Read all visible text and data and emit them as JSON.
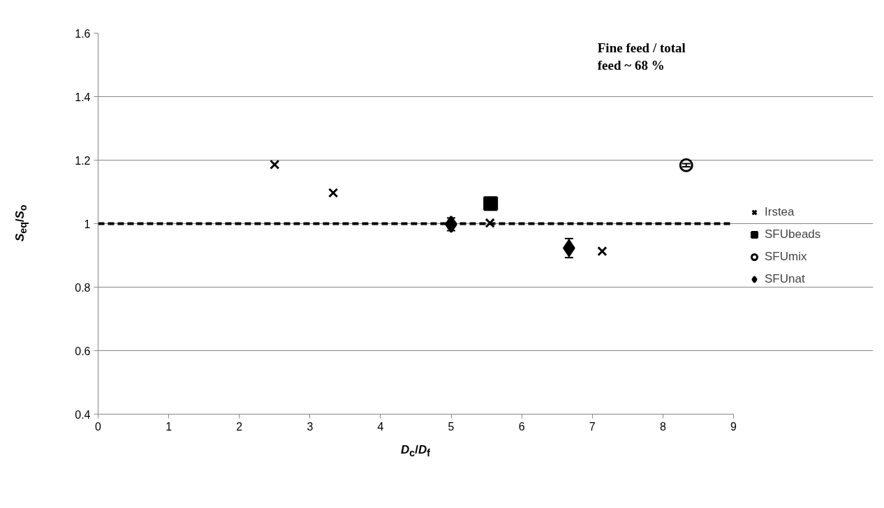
{
  "chart_data": {
    "type": "scatter",
    "xlabel": "D$_{c}$/D$_{f}$",
    "ylabel": "S$_{eq}$/S$_{o}$",
    "annotations": [
      "Fine feed / total feed ~ 68 %"
    ],
    "xlim": [
      0,
      9
    ],
    "xticks": [
      0,
      1,
      2,
      3,
      4,
      5,
      6,
      7,
      8,
      9
    ],
    "ylim": [
      0.4,
      1.6
    ],
    "yticks": [
      0.4,
      0.6,
      0.8,
      1,
      1.2,
      1.4,
      1.6
    ],
    "grid": "y",
    "legend": "right",
    "ref_lines": [
      {
        "axis": "y",
        "value": 1,
        "color": "#000000",
        "line_style": "dashed"
      }
    ],
    "series": [
      {
        "name": "Irstea",
        "color": "#000000",
        "marker": "cross",
        "x": [
          2.5,
          3.33,
          5.55,
          7.14
        ],
        "values": [
          1.186,
          1.097,
          1.002,
          0.913
        ]
      },
      {
        "name": "SFUbeads",
        "color": "#000000",
        "marker": "square",
        "x": [
          5.56
        ],
        "values": [
          1.063
        ]
      },
      {
        "name": "SFUmix",
        "color": "#000000",
        "marker": "circle",
        "x": [
          8.33
        ],
        "values": [
          1.184
        ],
        "errors": [
          0.005
        ]
      },
      {
        "name": "SFUnat",
        "color": "#000000",
        "marker": "diamond",
        "x": [
          5.0,
          6.67
        ],
        "values": [
          0.998,
          0.923
        ],
        "errors": [
          0.02,
          0.03
        ]
      }
    ]
  }
}
